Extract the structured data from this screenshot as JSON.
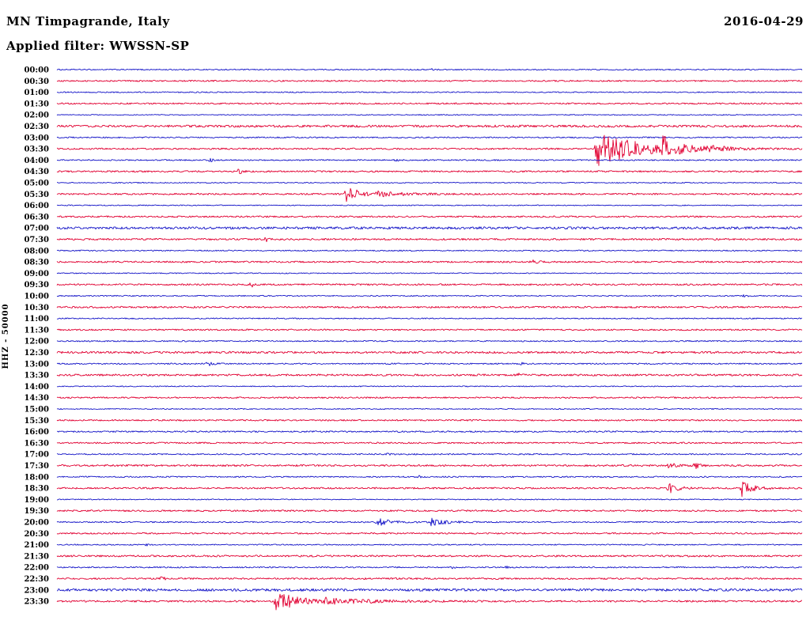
{
  "header": {
    "station": "MN Timpagrande, Italy",
    "date": "2016-04-29",
    "filter": "Applied filter: WWSSN-SP"
  },
  "axis": {
    "left_label": "HHZ - 50000"
  },
  "chart_data": {
    "type": "line",
    "title": "Helicorder day plot, station MN Timpagrande, Italy, channel HHZ, 2016-04-29, filter WWSSN-SP",
    "row_duration_min": 30,
    "scale": 50000,
    "colors": {
      "b": "#1616c8",
      "r": "#e10032"
    },
    "rows": [
      {
        "label": "00:00",
        "c": "b",
        "n": 0.7,
        "ev": [
          [
            0.502,
            2,
            3
          ]
        ]
      },
      {
        "label": "00:30",
        "c": "r",
        "n": 0.9,
        "ev": []
      },
      {
        "label": "01:00",
        "c": "b",
        "n": 0.7,
        "ev": []
      },
      {
        "label": "01:30",
        "c": "r",
        "n": 0.9,
        "ev": []
      },
      {
        "label": "02:00",
        "c": "b",
        "n": 0.6,
        "ev": []
      },
      {
        "label": "02:30",
        "c": "r",
        "n": 1.4,
        "ev": []
      },
      {
        "label": "03:00",
        "c": "b",
        "n": 0.8,
        "ev": []
      },
      {
        "label": "03:30",
        "c": "r",
        "n": 1.0,
        "ev": [
          [
            0.723,
            26,
            45
          ],
          [
            0.813,
            13,
            20
          ],
          [
            0.868,
            3,
            30
          ]
        ]
      },
      {
        "label": "04:00",
        "c": "b",
        "n": 0.8,
        "ev": [
          [
            0.205,
            5,
            2
          ],
          [
            0.454,
            3,
            2
          ]
        ]
      },
      {
        "label": "04:30",
        "c": "r",
        "n": 1.0,
        "ev": [
          [
            0.244,
            7,
            3
          ]
        ]
      },
      {
        "label": "05:00",
        "c": "b",
        "n": 0.6,
        "ev": []
      },
      {
        "label": "05:30",
        "c": "r",
        "n": 1.0,
        "ev": [
          [
            0.388,
            9,
            20
          ],
          [
            0.43,
            2,
            40
          ]
        ]
      },
      {
        "label": "06:00",
        "c": "b",
        "n": 0.6,
        "ev": []
      },
      {
        "label": "06:30",
        "c": "r",
        "n": 1.0,
        "ev": []
      },
      {
        "label": "07:00",
        "c": "b",
        "n": 1.5,
        "ev": []
      },
      {
        "label": "07:30",
        "c": "r",
        "n": 1.1,
        "ev": [
          [
            0.281,
            6,
            2
          ]
        ]
      },
      {
        "label": "08:00",
        "c": "b",
        "n": 0.7,
        "ev": []
      },
      {
        "label": "08:30",
        "c": "r",
        "n": 1.0,
        "ev": [
          [
            0.633,
            4,
            8
          ]
        ]
      },
      {
        "label": "09:00",
        "c": "b",
        "n": 0.6,
        "ev": []
      },
      {
        "label": "09:30",
        "c": "r",
        "n": 1.0,
        "ev": [
          [
            0.261,
            3.5,
            3
          ]
        ]
      },
      {
        "label": "10:00",
        "c": "b",
        "n": 0.7,
        "ev": [
          [
            0.92,
            1.5,
            6
          ]
        ]
      },
      {
        "label": "10:30",
        "c": "r",
        "n": 1.1,
        "ev": []
      },
      {
        "label": "11:00",
        "c": "b",
        "n": 0.7,
        "ev": []
      },
      {
        "label": "11:30",
        "c": "r",
        "n": 0.9,
        "ev": []
      },
      {
        "label": "12:00",
        "c": "b",
        "n": 0.8,
        "ev": []
      },
      {
        "label": "12:30",
        "c": "r",
        "n": 1.3,
        "ev": []
      },
      {
        "label": "13:00",
        "c": "b",
        "n": 0.8,
        "ev": [
          [
            0.202,
            3,
            6
          ],
          [
            0.624,
            2,
            3
          ]
        ]
      },
      {
        "label": "13:30",
        "c": "r",
        "n": 1.2,
        "ev": [
          [
            0.619,
            2,
            3
          ]
        ]
      },
      {
        "label": "14:00",
        "c": "b",
        "n": 0.6,
        "ev": []
      },
      {
        "label": "14:30",
        "c": "r",
        "n": 0.9,
        "ev": []
      },
      {
        "label": "15:00",
        "c": "b",
        "n": 0.6,
        "ev": []
      },
      {
        "label": "15:30",
        "c": "r",
        "n": 0.9,
        "ev": []
      },
      {
        "label": "16:00",
        "c": "b",
        "n": 0.9,
        "ev": []
      },
      {
        "label": "16:30",
        "c": "r",
        "n": 0.9,
        "ev": []
      },
      {
        "label": "17:00",
        "c": "b",
        "n": 0.8,
        "ev": [
          [
            0.442,
            2.5,
            3
          ]
        ]
      },
      {
        "label": "17:30",
        "c": "r",
        "n": 1.1,
        "ev": [
          [
            0.82,
            4,
            10
          ],
          [
            0.856,
            5,
            5
          ]
        ]
      },
      {
        "label": "18:00",
        "c": "b",
        "n": 0.8,
        "ev": [
          [
            0.486,
            2,
            3
          ]
        ]
      },
      {
        "label": "18:30",
        "c": "r",
        "n": 1.0,
        "ev": [
          [
            0.818,
            9,
            10
          ],
          [
            0.919,
            10,
            12
          ]
        ]
      },
      {
        "label": "19:00",
        "c": "b",
        "n": 0.6,
        "ev": []
      },
      {
        "label": "19:30",
        "c": "r",
        "n": 1.0,
        "ev": []
      },
      {
        "label": "20:00",
        "c": "b",
        "n": 0.8,
        "ev": [
          [
            0.428,
            5,
            18
          ],
          [
            0.502,
            5,
            16
          ]
        ]
      },
      {
        "label": "20:30",
        "c": "r",
        "n": 0.9,
        "ev": []
      },
      {
        "label": "21:00",
        "c": "b",
        "n": 0.7,
        "ev": [
          [
            0.12,
            2,
            3
          ]
        ]
      },
      {
        "label": "21:30",
        "c": "r",
        "n": 1.1,
        "ev": []
      },
      {
        "label": "22:00",
        "c": "b",
        "n": 0.8,
        "ev": [
          [
            0.529,
            2,
            3
          ],
          [
            0.603,
            2,
            3
          ]
        ]
      },
      {
        "label": "22:30",
        "c": "r",
        "n": 1.0,
        "ev": [
          [
            0.141,
            4,
            3
          ]
        ]
      },
      {
        "label": "23:00",
        "c": "b",
        "n": 1.6,
        "ev": []
      },
      {
        "label": "23:30",
        "c": "r",
        "n": 1.1,
        "ev": [
          [
            0.293,
            13,
            28
          ],
          [
            0.36,
            3,
            60
          ]
        ]
      }
    ]
  }
}
